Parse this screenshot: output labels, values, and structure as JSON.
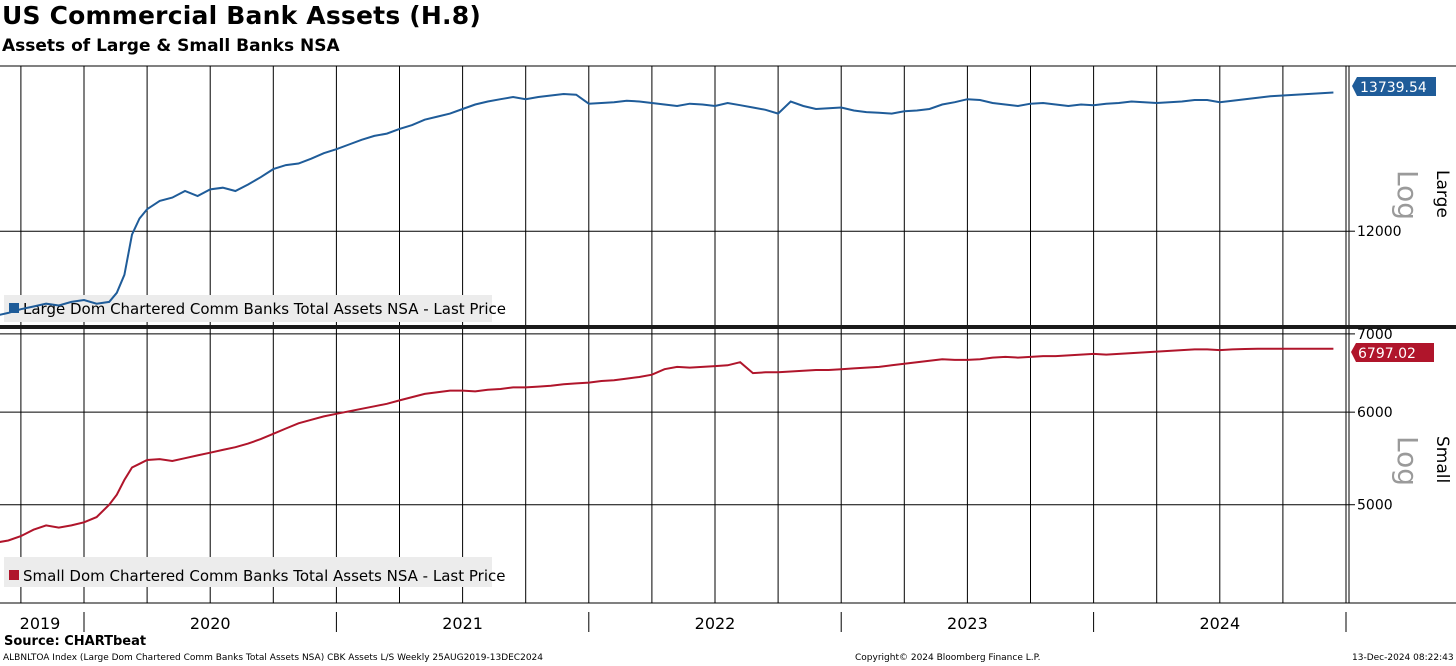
{
  "title": "US Commercial Bank Assets (H.8)",
  "subtitle": "Assets of Large & Small Banks NSA",
  "footer": {
    "source": "Source: CHARTbeat",
    "index_info": "ALBNLTOA Index (Large Dom Chartered Comm Banks Total Assets NSA) CBK Assets L/S  Weekly 25AUG2019-13DEC2024",
    "copyright": "Copyright© 2024 Bloomberg Finance L.P.",
    "timestamp": "13-Dec-2024 08:22:43"
  },
  "colors": {
    "large": "#1f5c99",
    "small": "#b0152b",
    "grid": "#000000",
    "axis_log_text": "#9a9a9a"
  },
  "chart_data": [
    {
      "type": "line",
      "panel": "top",
      "axis_title": "Large",
      "scale_label": "Log",
      "scale": "log",
      "y_ticks": [
        12000
      ],
      "ylim": [
        10950,
        14100
      ],
      "last_value_label": "13739.54",
      "legend": "Large Dom Chartered Comm Banks Total Assets NSA - Last Price",
      "series": [
        {
          "name": "Large Dom Chartered Comm Banks Total Assets NSA - Last Price",
          "x": [
            2019.65,
            2019.7,
            2019.75,
            2019.8,
            2019.85,
            2019.9,
            2019.95,
            2020.0,
            2020.05,
            2020.1,
            2020.13,
            2020.16,
            2020.19,
            2020.22,
            2020.25,
            2020.3,
            2020.35,
            2020.4,
            2020.45,
            2020.5,
            2020.55,
            2020.6,
            2020.65,
            2020.7,
            2020.75,
            2020.8,
            2020.85,
            2020.9,
            2020.95,
            2021.0,
            2021.05,
            2021.1,
            2021.15,
            2021.2,
            2021.25,
            2021.3,
            2021.35,
            2021.4,
            2021.45,
            2021.5,
            2021.55,
            2021.6,
            2021.65,
            2021.7,
            2021.75,
            2021.8,
            2021.85,
            2021.9,
            2021.95,
            2022.0,
            2022.05,
            2022.1,
            2022.15,
            2022.2,
            2022.25,
            2022.3,
            2022.35,
            2022.4,
            2022.45,
            2022.5,
            2022.55,
            2022.6,
            2022.65,
            2022.7,
            2022.75,
            2022.8,
            2022.85,
            2022.9,
            2022.95,
            2023.0,
            2023.05,
            2023.1,
            2023.15,
            2023.2,
            2023.25,
            2023.3,
            2023.35,
            2023.4,
            2023.45,
            2023.5,
            2023.55,
            2023.6,
            2023.65,
            2023.7,
            2023.75,
            2023.8,
            2023.85,
            2023.9,
            2023.95,
            2024.0,
            2024.05,
            2024.1,
            2024.15,
            2024.2,
            2024.25,
            2024.3,
            2024.35,
            2024.4,
            2024.45,
            2024.5,
            2024.55,
            2024.6,
            2024.65,
            2024.7,
            2024.75,
            2024.8,
            2024.85,
            2024.9,
            2024.95
          ],
          "values": [
            11050,
            11080,
            11120,
            11150,
            11180,
            11160,
            11200,
            11220,
            11180,
            11200,
            11300,
            11500,
            11960,
            12150,
            12260,
            12360,
            12400,
            12480,
            12420,
            12500,
            12520,
            12480,
            12560,
            12650,
            12750,
            12800,
            12820,
            12880,
            12950,
            13000,
            13060,
            13120,
            13170,
            13200,
            13260,
            13310,
            13380,
            13420,
            13460,
            13520,
            13580,
            13620,
            13650,
            13680,
            13650,
            13680,
            13700,
            13720,
            13710,
            13590,
            13600,
            13610,
            13630,
            13620,
            13600,
            13580,
            13560,
            13590,
            13580,
            13560,
            13600,
            13570,
            13540,
            13510,
            13460,
            13620,
            13560,
            13520,
            13530,
            13540,
            13500,
            13480,
            13470,
            13460,
            13490,
            13500,
            13520,
            13580,
            13610,
            13650,
            13640,
            13600,
            13580,
            13560,
            13590,
            13600,
            13580,
            13560,
            13580,
            13570,
            13590,
            13600,
            13620,
            13610,
            13600,
            13610,
            13620,
            13640,
            13640,
            13610,
            13630,
            13650,
            13670,
            13690,
            13700,
            13710,
            13720,
            13730,
            13739.54
          ]
        }
      ]
    },
    {
      "type": "line",
      "panel": "bottom",
      "axis_title": "Small",
      "scale_label": "Log",
      "scale": "log",
      "y_ticks": [
        5000,
        6000,
        7000
      ],
      "ylim": [
        4120,
        7040
      ],
      "last_value_label": "6797.02",
      "legend": "Small Dom Chartered Comm Banks Total Assets NSA - Last Price",
      "series": [
        {
          "name": "Small Dom Chartered Comm Banks Total Assets NSA - Last Price",
          "x": [
            2019.65,
            2019.7,
            2019.75,
            2019.8,
            2019.85,
            2019.9,
            2019.95,
            2020.0,
            2020.05,
            2020.1,
            2020.13,
            2020.16,
            2020.19,
            2020.22,
            2020.25,
            2020.3,
            2020.35,
            2020.4,
            2020.45,
            2020.5,
            2020.55,
            2020.6,
            2020.65,
            2020.7,
            2020.75,
            2020.8,
            2020.85,
            2020.9,
            2020.95,
            2021.0,
            2021.05,
            2021.1,
            2021.15,
            2021.2,
            2021.25,
            2021.3,
            2021.35,
            2021.4,
            2021.45,
            2021.5,
            2021.55,
            2021.6,
            2021.65,
            2021.7,
            2021.75,
            2021.8,
            2021.85,
            2021.9,
            2021.95,
            2022.0,
            2022.05,
            2022.1,
            2022.15,
            2022.2,
            2022.25,
            2022.3,
            2022.35,
            2022.4,
            2022.45,
            2022.5,
            2022.55,
            2022.6,
            2022.65,
            2022.7,
            2022.75,
            2022.8,
            2022.85,
            2022.9,
            2022.95,
            2023.0,
            2023.05,
            2023.1,
            2023.15,
            2023.2,
            2023.25,
            2023.3,
            2023.35,
            2023.4,
            2023.45,
            2023.5,
            2023.55,
            2023.6,
            2023.65,
            2023.7,
            2023.75,
            2023.8,
            2023.85,
            2023.9,
            2023.95,
            2024.0,
            2024.05,
            2024.1,
            2024.15,
            2024.2,
            2024.25,
            2024.3,
            2024.35,
            2024.4,
            2024.45,
            2024.5,
            2024.55,
            2024.6,
            2024.65,
            2024.7,
            2024.75,
            2024.8,
            2024.85,
            2024.9,
            2024.95
          ],
          "values": [
            4640,
            4660,
            4700,
            4760,
            4800,
            4780,
            4800,
            4830,
            4880,
            5000,
            5100,
            5250,
            5380,
            5420,
            5460,
            5470,
            5450,
            5480,
            5510,
            5540,
            5570,
            5600,
            5640,
            5690,
            5750,
            5810,
            5870,
            5910,
            5950,
            5980,
            6010,
            6040,
            6070,
            6100,
            6140,
            6180,
            6220,
            6240,
            6260,
            6260,
            6250,
            6270,
            6280,
            6300,
            6300,
            6310,
            6320,
            6340,
            6350,
            6360,
            6380,
            6390,
            6410,
            6430,
            6460,
            6530,
            6560,
            6550,
            6560,
            6570,
            6580,
            6620,
            6480,
            6490,
            6490,
            6500,
            6510,
            6520,
            6520,
            6530,
            6540,
            6550,
            6560,
            6580,
            6600,
            6620,
            6640,
            6660,
            6650,
            6650,
            6660,
            6680,
            6690,
            6680,
            6690,
            6700,
            6700,
            6710,
            6720,
            6730,
            6720,
            6730,
            6740,
            6750,
            6760,
            6770,
            6780,
            6790,
            6790,
            6780,
            6790,
            6795,
            6797.02,
            6797.02,
            6797.02,
            6797.02,
            6797.02,
            6797.02,
            6797.02
          ]
        }
      ]
    }
  ],
  "x_axis": {
    "labels": [
      "2019",
      "2020",
      "2021",
      "2022",
      "2023",
      "2024"
    ]
  }
}
